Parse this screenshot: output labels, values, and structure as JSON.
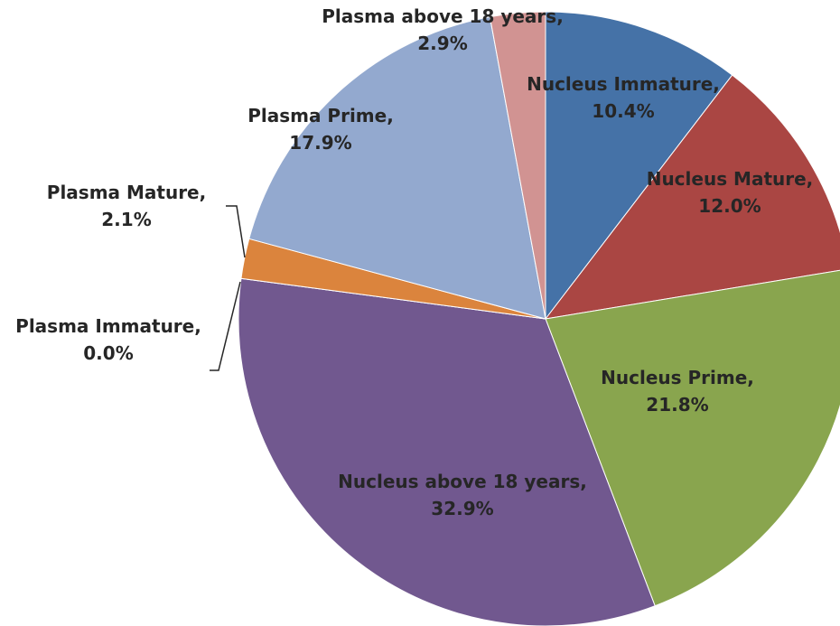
{
  "chart_data": {
    "type": "pie",
    "categories": [
      "Nucleus Immature,",
      "Nucleus Mature,",
      "Nucleus Prime,",
      "Nucleus above 18 years,",
      "Plasma Immature,",
      "Plasma Mature,",
      "Plasma Prime,",
      "Plasma above 18 years,"
    ],
    "values": [
      10.4,
      12.0,
      21.8,
      32.9,
      0.0,
      2.1,
      17.9,
      2.9
    ],
    "value_labels": [
      "10.4%",
      "12.0%",
      "21.8%",
      "32.9%",
      "0.0%",
      "2.1%",
      "17.9%",
      "2.9%"
    ],
    "colors": [
      "#4572a7",
      "#aa4643",
      "#89a54e",
      "#71588f",
      "#4198af",
      "#db843d",
      "#93a9cf",
      "#d19392"
    ]
  }
}
